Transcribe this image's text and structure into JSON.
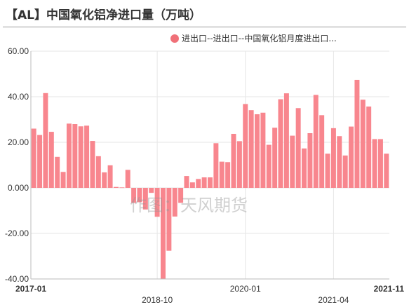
{
  "title": "【AL】中国氧化铝净进口量（万吨）",
  "watermark": "作图：天风期货",
  "colors": {
    "bar": "#f8868e",
    "legend": "#f07078",
    "grid": "#e6e6e6",
    "axis": "#333333"
  },
  "chart_data": {
    "type": "bar",
    "series": [
      {
        "name": "进出口--进出口--中国氧化铝月度进出口...",
        "values": [
          26.0,
          23.2,
          41.6,
          24.6,
          13.6,
          7.0,
          28.2,
          28.0,
          27.0,
          27.3,
          20.6,
          13.9,
          6.8,
          9.9,
          0.4,
          0.2,
          7.9,
          -6.6,
          -6.3,
          -9.5,
          -2.2,
          -12.7,
          -40.2,
          -27.6,
          -12.6,
          -6.6,
          5.2,
          2.4,
          3.9,
          4.6,
          4.6,
          19.6,
          11.5,
          11.3,
          23.7,
          20.5,
          36.8,
          34.1,
          32.3,
          33.0,
          18.9,
          26.4,
          38.9,
          41.5,
          22.9,
          35.0,
          17.3,
          24.0,
          40.8,
          31.9,
          15.0,
          26.2,
          22.7,
          14.2,
          26.9,
          47.4,
          38.7,
          35.7,
          21.4,
          21.4,
          15.0
        ]
      }
    ],
    "x_start": "2017-01",
    "x_ticks": [
      {
        "label": "2017-01",
        "index": 0,
        "bold": true
      },
      {
        "label": "2018-10",
        "index": 21,
        "bold": false
      },
      {
        "label": "2020-01",
        "index": 36,
        "bold": false
      },
      {
        "label": "2021-04",
        "index": 51,
        "bold": false
      },
      {
        "label": "2021-11",
        "index": 58,
        "bold": true
      }
    ],
    "y_ticks": [
      "60.00",
      "40.00",
      "20.00",
      "0.000",
      "-20.00",
      "-40.00"
    ],
    "ylim": [
      -40,
      60
    ],
    "grid": true,
    "legend_position": "top-right"
  }
}
